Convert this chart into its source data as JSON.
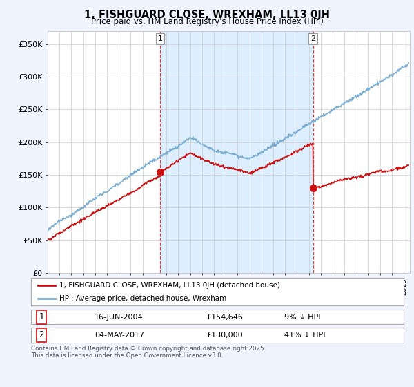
{
  "title": "1, FISHGUARD CLOSE, WREXHAM, LL13 0JH",
  "subtitle": "Price paid vs. HM Land Registry's House Price Index (HPI)",
  "ylabel_ticks": [
    "£0",
    "£50K",
    "£100K",
    "£150K",
    "£200K",
    "£250K",
    "£300K",
    "£350K"
  ],
  "ytick_values": [
    0,
    50000,
    100000,
    150000,
    200000,
    250000,
    300000,
    350000
  ],
  "ylim": [
    0,
    370000
  ],
  "xlim_start": 1995.0,
  "xlim_end": 2025.5,
  "hpi_color": "#7aadd4",
  "price_color": "#cc1111",
  "marker1_date": 2004.46,
  "marker1_price": 154646,
  "marker2_date": 2017.34,
  "marker2_price": 130000,
  "vline1_x": 2004.46,
  "vline2_x": 2017.34,
  "shade_color": "#ddeeff",
  "legend_label1": "1, FISHGUARD CLOSE, WREXHAM, LL13 0JH (detached house)",
  "legend_label2": "HPI: Average price, detached house, Wrexham",
  "table_row1": [
    "1",
    "16-JUN-2004",
    "£154,646",
    "9% ↓ HPI"
  ],
  "table_row2": [
    "2",
    "04-MAY-2017",
    "£130,000",
    "41% ↓ HPI"
  ],
  "footer": "Contains HM Land Registry data © Crown copyright and database right 2025.\nThis data is licensed under the Open Government Licence v3.0.",
  "background_color": "#f0f4ff",
  "plot_bg_color": "#ffffff",
  "grid_color": "#cccccc"
}
